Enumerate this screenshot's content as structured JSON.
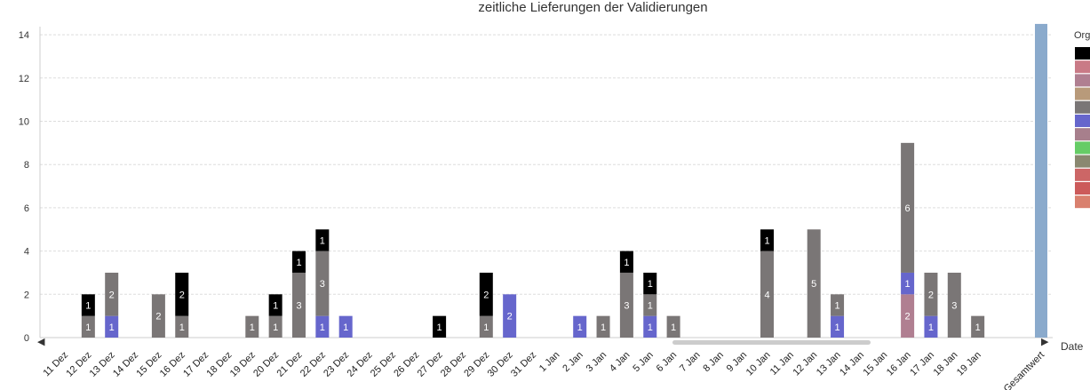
{
  "chart_data": {
    "type": "bar",
    "stacked": true,
    "title": "zeitliche Lieferungen der Validierungen",
    "xlabel": "Date",
    "ylabel": "",
    "ylim": [
      0,
      14.5
    ],
    "yticks": [
      0,
      2,
      4,
      6,
      8,
      10,
      12,
      14
    ],
    "grid": true,
    "legend_title": "Org",
    "legend_position": "right",
    "categories": [
      "11 Dez",
      "12 Dez",
      "13 Dez",
      "14 Dez",
      "15 Dez",
      "16 Dez",
      "17 Dez",
      "18 Dez",
      "19 Dez",
      "20 Dez",
      "21 Dez",
      "22 Dez",
      "23 Dez",
      "24 Dez",
      "25 Dez",
      "26 Dez",
      "27 Dez",
      "28 Dez",
      "29 Dez",
      "30 Dez",
      "31 Dez",
      "1 Jan",
      "2 Jan",
      "3 Jan",
      "4 Jan",
      "5 Jan",
      "6 Jan",
      "7 Jan",
      "8 Jan",
      "9 Jan",
      "10 Jan",
      "11 Jan",
      "12 Jan",
      "13 Jan",
      "14 Jan",
      "15 Jan",
      "16 Jan",
      "17 Jan",
      "18 Jan",
      "19 Jan",
      "Gesamtwert"
    ],
    "series": [
      {
        "color": "#b07f91",
        "values": [
          0,
          0,
          0,
          0,
          0,
          0,
          0,
          0,
          0,
          0,
          0,
          0,
          0,
          0,
          0,
          0,
          0,
          0,
          0,
          0,
          0,
          0,
          0,
          0,
          0,
          0,
          0,
          0,
          0,
          0,
          0,
          0,
          0,
          0,
          0,
          0,
          2,
          0,
          0,
          0,
          0
        ]
      },
      {
        "color": "#6666cc",
        "values": [
          0,
          0,
          1,
          0,
          0,
          0,
          0,
          0,
          0,
          0,
          0,
          1,
          1,
          0,
          0,
          0,
          0,
          0,
          0,
          2,
          0,
          0,
          1,
          0,
          0,
          1,
          0,
          0,
          0,
          0,
          0,
          0,
          0,
          1,
          0,
          0,
          1,
          1,
          0,
          0,
          0
        ]
      },
      {
        "color": "#7a7676",
        "values": [
          0,
          1,
          2,
          0,
          2,
          1,
          0,
          0,
          1,
          1,
          3,
          3,
          0,
          0,
          0,
          0,
          0,
          0,
          1,
          0,
          0,
          0,
          0,
          1,
          3,
          1,
          1,
          0,
          0,
          0,
          4,
          0,
          5,
          1,
          0,
          0,
          6,
          2,
          3,
          1,
          0
        ]
      },
      {
        "color": "#000000",
        "values": [
          0,
          1,
          0,
          0,
          0,
          2,
          0,
          0,
          0,
          1,
          1,
          1,
          0,
          0,
          0,
          0,
          1,
          0,
          2,
          0,
          0,
          0,
          0,
          0,
          1,
          1,
          0,
          0,
          0,
          0,
          1,
          0,
          0,
          0,
          0,
          0,
          0,
          0,
          0,
          0,
          0
        ]
      }
    ],
    "total_bar": {
      "category": "Gesamtwert",
      "value": 14.5,
      "color": "#8aaacc"
    },
    "legend_entries": [
      {
        "color": "#000000"
      },
      {
        "color": "#c97a86"
      },
      {
        "color": "#b07f91"
      },
      {
        "color": "#b89a7a"
      },
      {
        "color": "#7a7676"
      },
      {
        "color": "#6666cc"
      },
      {
        "color": "#a77f8c"
      },
      {
        "color": "#66cc66"
      },
      {
        "color": "#8a8870"
      },
      {
        "color": "#cc6666"
      },
      {
        "color": "#cc5a5a"
      },
      {
        "color": "#d9806e"
      }
    ]
  }
}
